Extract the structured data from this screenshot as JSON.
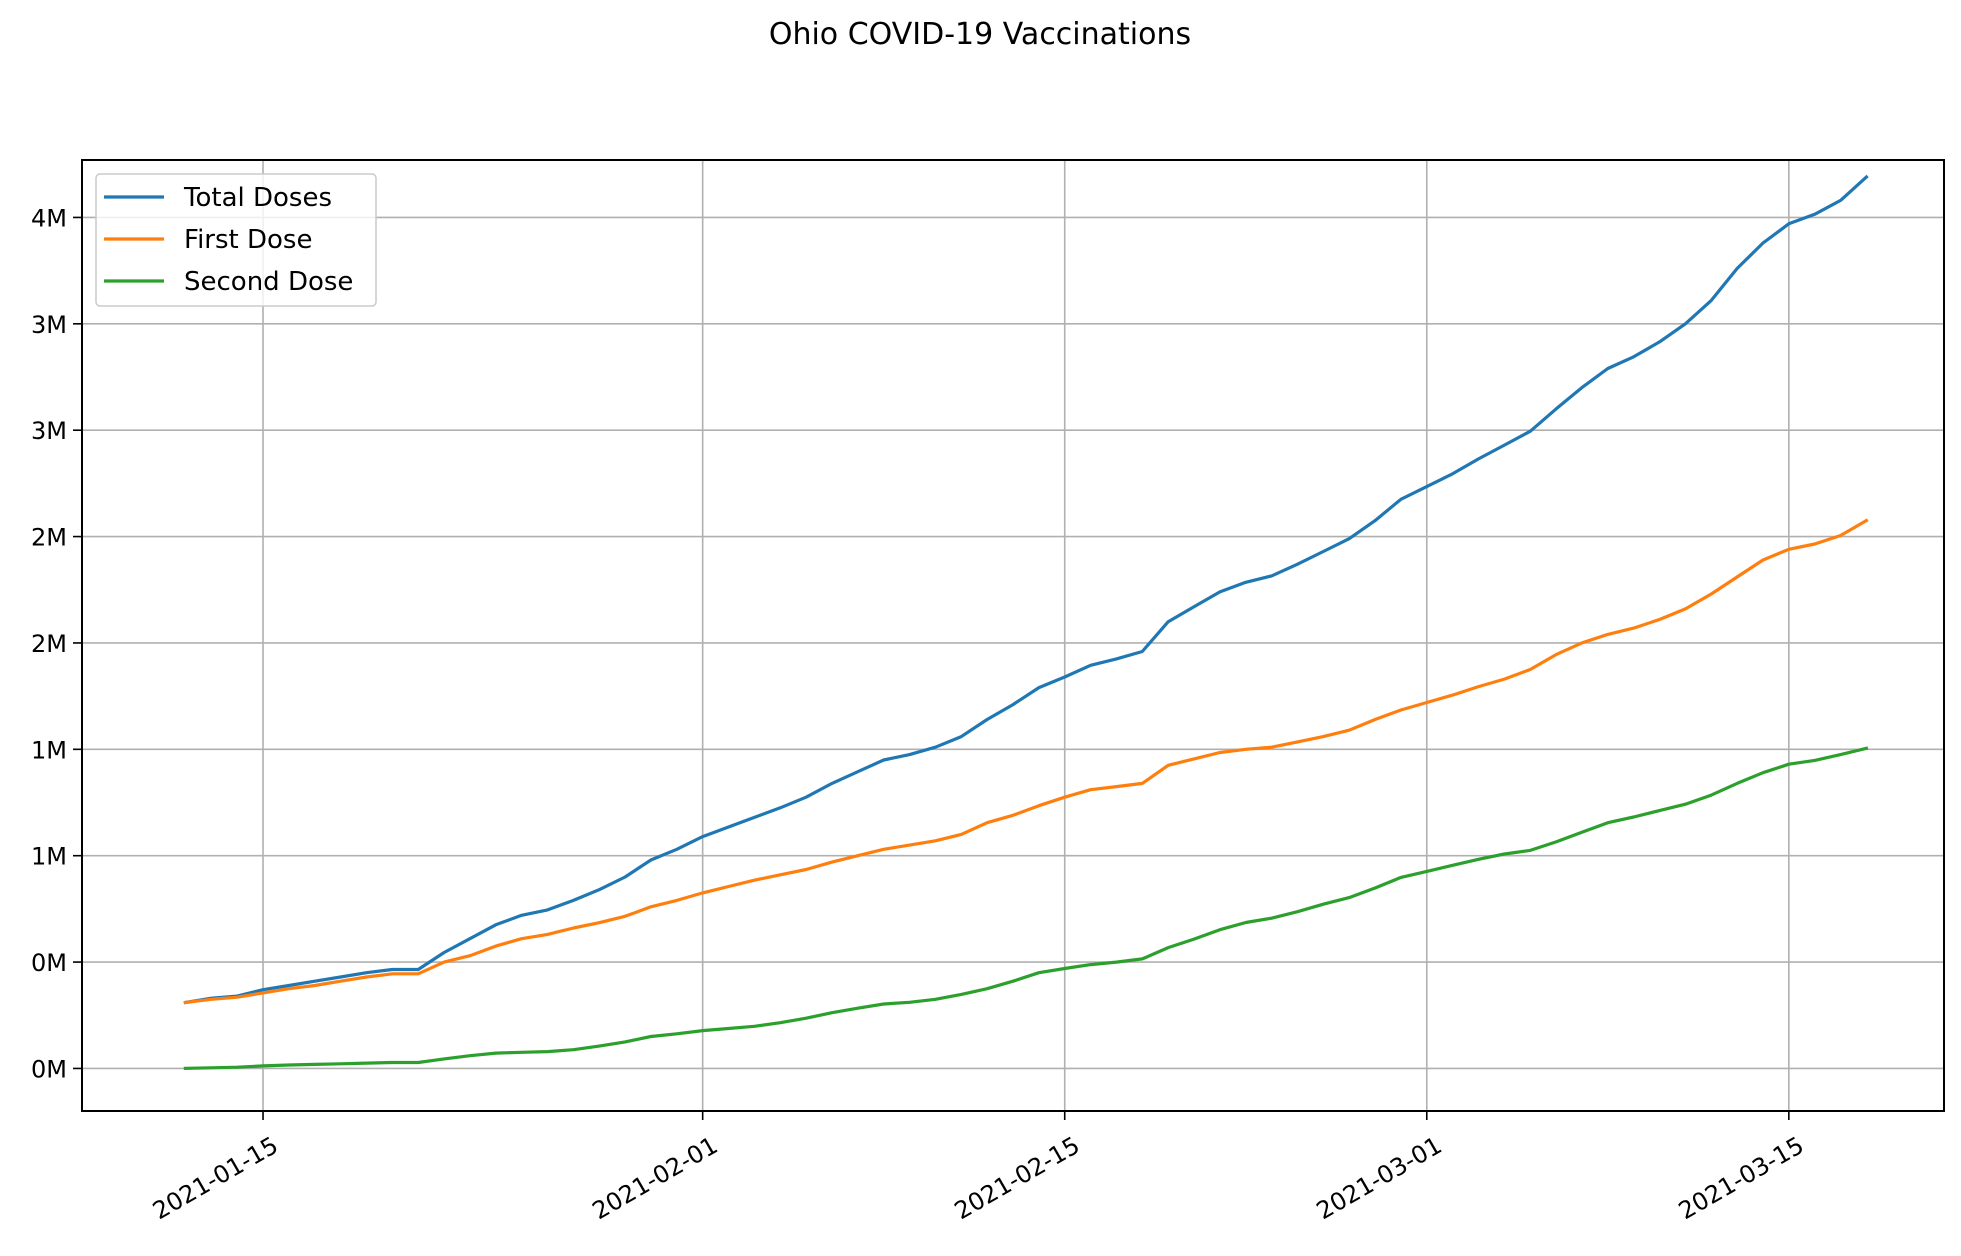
{
  "chart_data": {
    "type": "line",
    "title": "Ohio COVID-19 Vaccinations",
    "xlabel": "",
    "ylabel": "",
    "grid": true,
    "legend_position": "upper-left",
    "y_tick_format": "millions, zero decimals",
    "xlim": [
      "2021-01-08",
      "2021-03-21"
    ],
    "ylim": [
      -0.2,
      4.27
    ],
    "x_ticks": [
      "2021-01-15",
      "2021-02-01",
      "2021-02-15",
      "2021-03-01",
      "2021-03-15"
    ],
    "y_ticks": [
      {
        "value": 0.0,
        "label": "0M"
      },
      {
        "value": 0.5,
        "label": "0M"
      },
      {
        "value": 1.0,
        "label": "1M"
      },
      {
        "value": 1.5,
        "label": "1M"
      },
      {
        "value": 2.0,
        "label": "2M"
      },
      {
        "value": 2.5,
        "label": "2M"
      },
      {
        "value": 3.0,
        "label": "3M"
      },
      {
        "value": 3.5,
        "label": "3M"
      },
      {
        "value": 4.0,
        "label": "4M"
      }
    ],
    "x": [
      "2021-01-12",
      "2021-01-13",
      "2021-01-14",
      "2021-01-15",
      "2021-01-16",
      "2021-01-17",
      "2021-01-18",
      "2021-01-19",
      "2021-01-20",
      "2021-01-21",
      "2021-01-22",
      "2021-01-23",
      "2021-01-24",
      "2021-01-25",
      "2021-01-26",
      "2021-01-27",
      "2021-01-28",
      "2021-01-29",
      "2021-01-30",
      "2021-01-31",
      "2021-02-01",
      "2021-02-02",
      "2021-02-03",
      "2021-02-04",
      "2021-02-05",
      "2021-02-06",
      "2021-02-07",
      "2021-02-08",
      "2021-02-09",
      "2021-02-10",
      "2021-02-11",
      "2021-02-12",
      "2021-02-13",
      "2021-02-14",
      "2021-02-15",
      "2021-02-16",
      "2021-02-17",
      "2021-02-18",
      "2021-02-19",
      "2021-02-20",
      "2021-02-21",
      "2021-02-22",
      "2021-02-23",
      "2021-02-24",
      "2021-02-25",
      "2021-02-26",
      "2021-02-27",
      "2021-02-28",
      "2021-03-01",
      "2021-03-02",
      "2021-03-03",
      "2021-03-04",
      "2021-03-05",
      "2021-03-06",
      "2021-03-07",
      "2021-03-08",
      "2021-03-09",
      "2021-03-10",
      "2021-03-11",
      "2021-03-12",
      "2021-03-13",
      "2021-03-14",
      "2021-03-15",
      "2021-03-16",
      "2021-03-17",
      "2021-03-18"
    ],
    "series": [
      {
        "name": "Total Doses",
        "color": "#1f77b4",
        "values": [
          0.31,
          0.33,
          0.34,
          0.37,
          0.39,
          0.41,
          0.43,
          0.45,
          0.465,
          0.465,
          0.545,
          0.61,
          0.675,
          0.72,
          0.745,
          0.79,
          0.84,
          0.9,
          0.98,
          1.03,
          1.09,
          1.135,
          1.18,
          1.225,
          1.275,
          1.34,
          1.395,
          1.45,
          1.475,
          1.51,
          1.56,
          1.64,
          1.71,
          1.79,
          1.84,
          1.895,
          1.925,
          1.96,
          2.1,
          2.17,
          2.24,
          2.285,
          2.315,
          2.37,
          2.43,
          2.49,
          2.575,
          2.675,
          2.735,
          2.795,
          2.865,
          2.93,
          2.995,
          3.1,
          3.2,
          3.29,
          3.345,
          3.415,
          3.5,
          3.61,
          3.76,
          3.88,
          3.97,
          4.015,
          4.08,
          4.19
        ]
      },
      {
        "name": "First Dose",
        "color": "#ff7f0e",
        "values": [
          0.31,
          0.325,
          0.335,
          0.355,
          0.375,
          0.39,
          0.41,
          0.43,
          0.445,
          0.445,
          0.5,
          0.53,
          0.575,
          0.61,
          0.63,
          0.66,
          0.685,
          0.715,
          0.76,
          0.79,
          0.825,
          0.855,
          0.885,
          0.91,
          0.935,
          0.97,
          1.0,
          1.03,
          1.05,
          1.07,
          1.1,
          1.155,
          1.19,
          1.235,
          1.275,
          1.31,
          1.325,
          1.34,
          1.425,
          1.455,
          1.485,
          1.5,
          1.51,
          1.535,
          1.56,
          1.59,
          1.64,
          1.685,
          1.72,
          1.755,
          1.795,
          1.83,
          1.875,
          1.945,
          2.0,
          2.04,
          2.07,
          2.11,
          2.16,
          2.23,
          2.31,
          2.39,
          2.44,
          2.465,
          2.505,
          2.575
        ]
      },
      {
        "name": "Second Dose",
        "color": "#2ca02c",
        "values": [
          0.0,
          0.003,
          0.006,
          0.012,
          0.016,
          0.019,
          0.022,
          0.025,
          0.028,
          0.028,
          0.045,
          0.06,
          0.072,
          0.076,
          0.079,
          0.088,
          0.105,
          0.125,
          0.15,
          0.163,
          0.178,
          0.188,
          0.198,
          0.215,
          0.236,
          0.262,
          0.283,
          0.303,
          0.311,
          0.325,
          0.348,
          0.375,
          0.41,
          0.45,
          0.47,
          0.488,
          0.5,
          0.515,
          0.568,
          0.608,
          0.652,
          0.686,
          0.706,
          0.737,
          0.772,
          0.803,
          0.848,
          0.898,
          0.926,
          0.955,
          0.983,
          1.008,
          1.025,
          1.065,
          1.11,
          1.155,
          1.182,
          1.212,
          1.242,
          1.285,
          1.34,
          1.39,
          1.43,
          1.448,
          1.475,
          1.505
        ]
      }
    ]
  }
}
